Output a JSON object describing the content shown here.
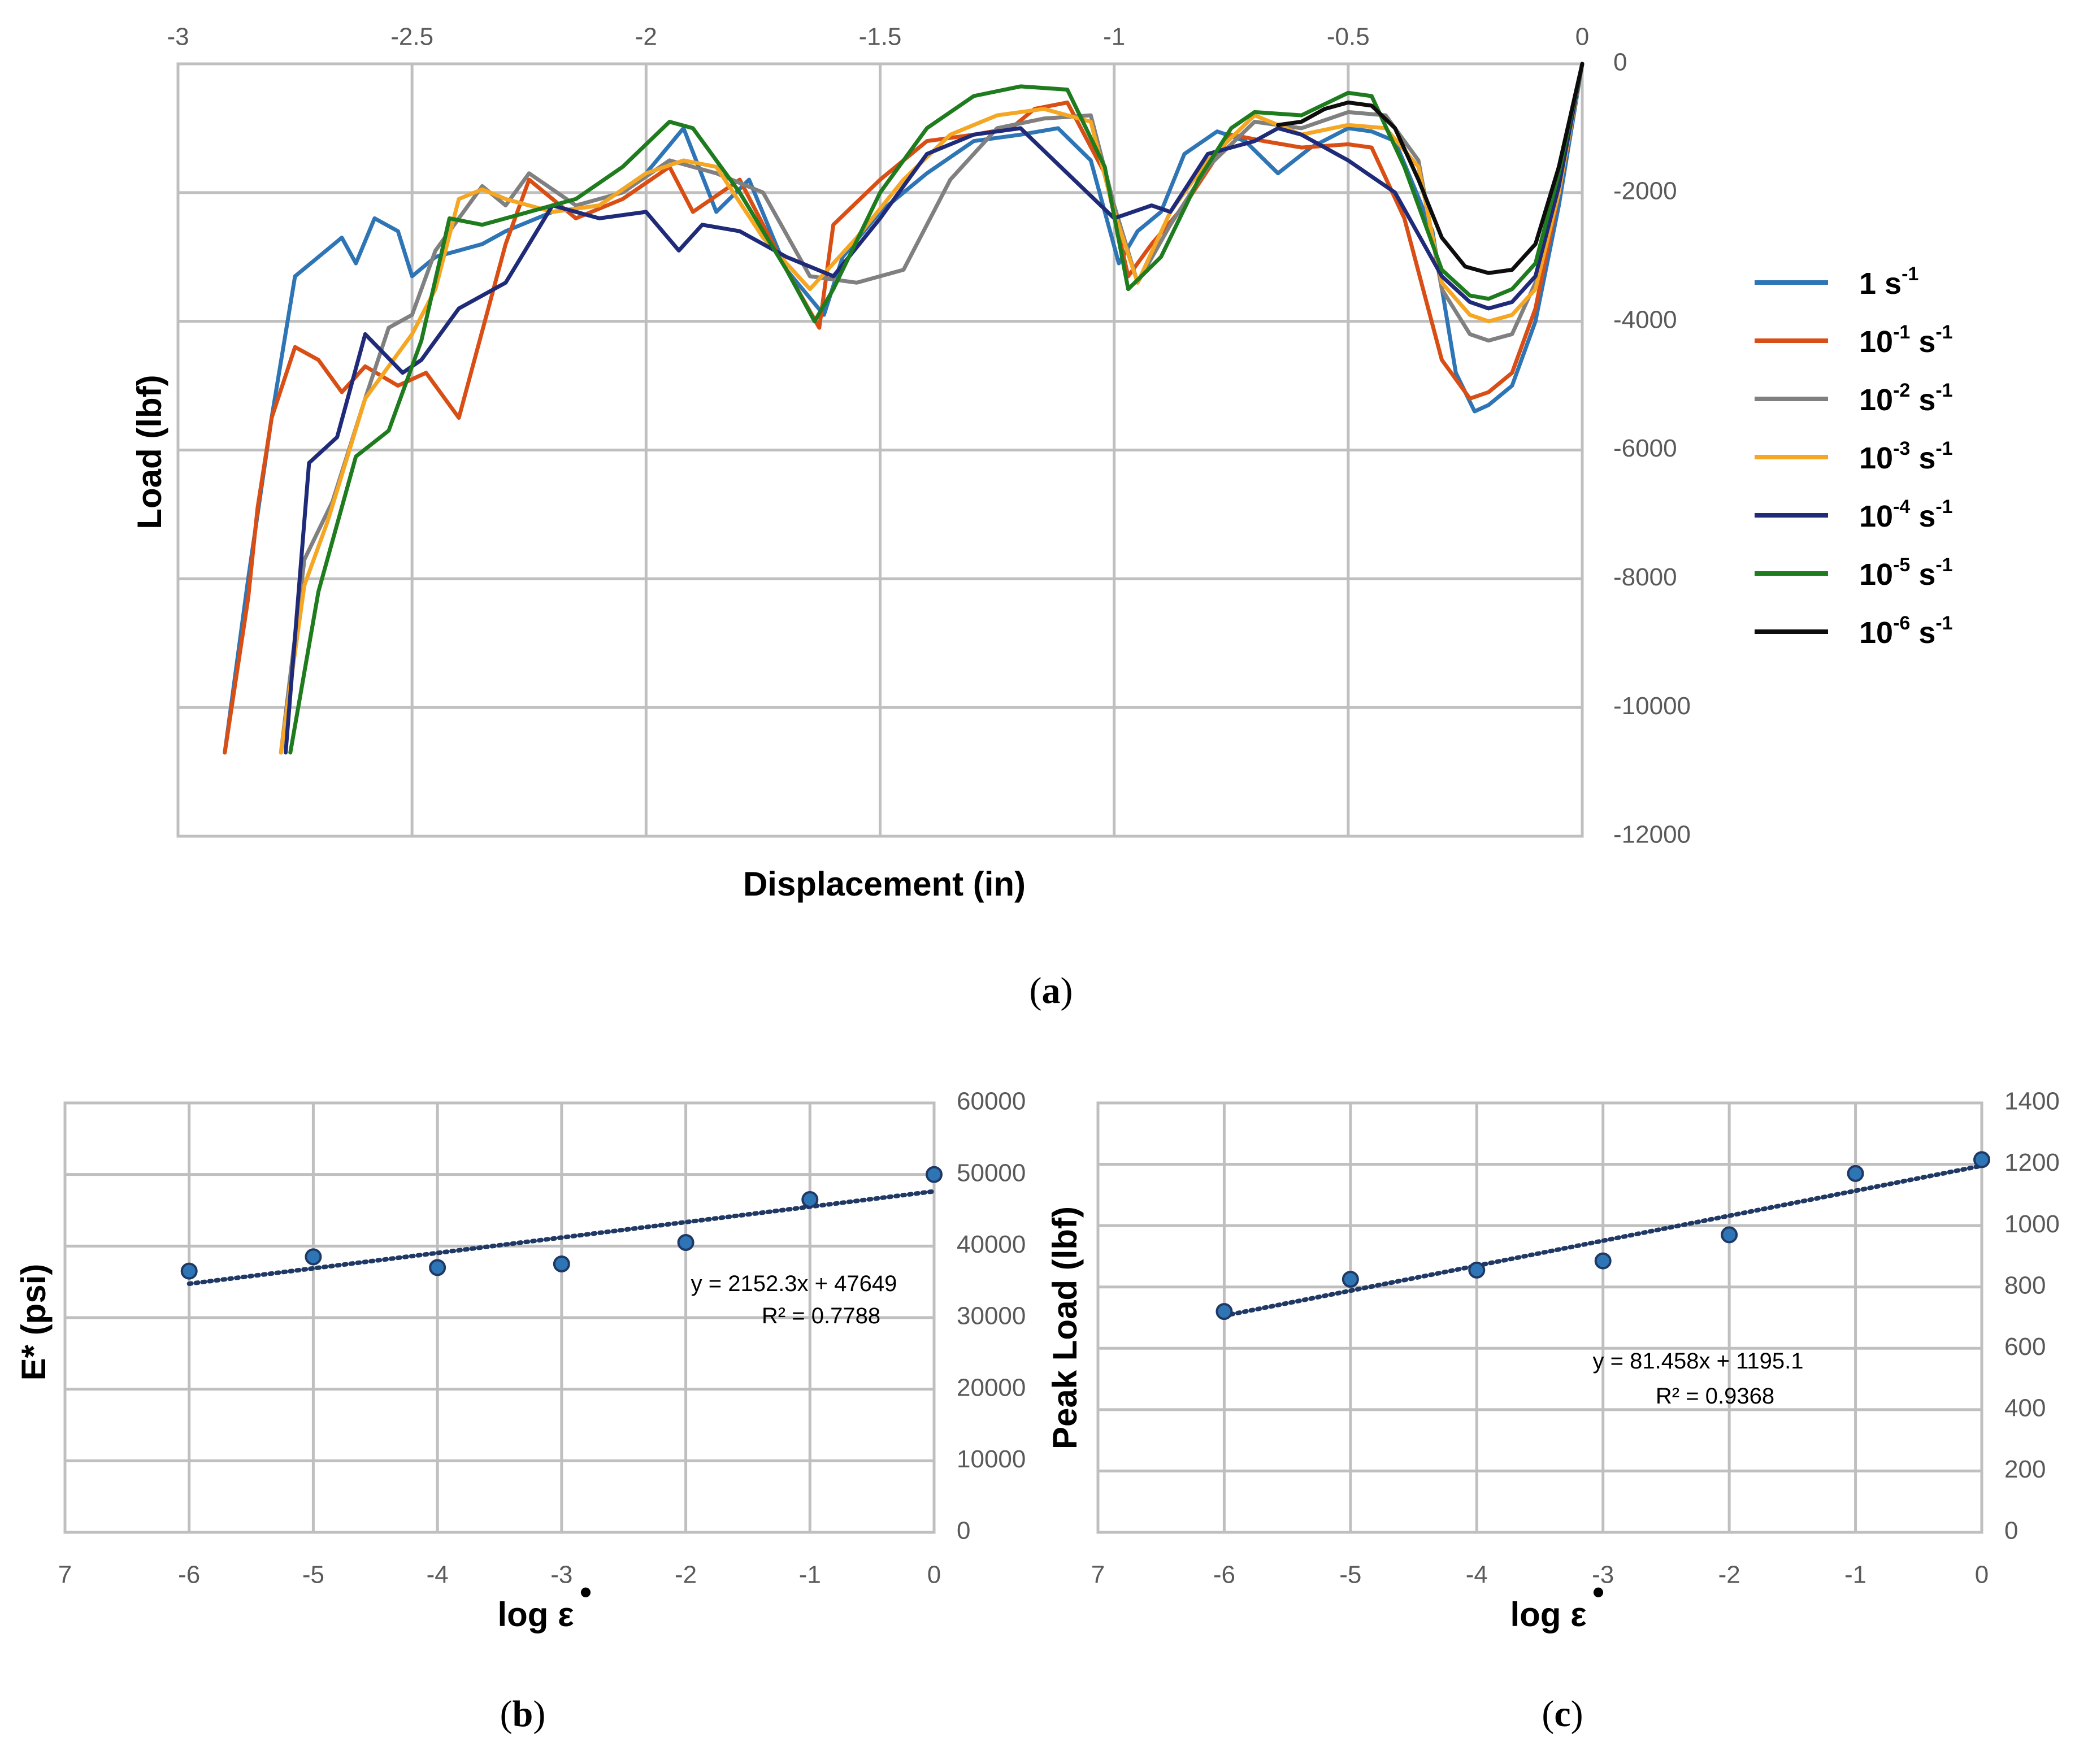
{
  "chart_data": [
    {
      "id": "a",
      "type": "line",
      "panel_label": "a",
      "xlabel": "Displacement (in)",
      "ylabel": "Load (lbf)",
      "xlim": [
        -3,
        0
      ],
      "ylim": [
        -12000,
        0
      ],
      "xticks": [
        "-3",
        "-2.5",
        "-2",
        "-1.5",
        "-1",
        "-0.5",
        "0"
      ],
      "yticks": [
        "0",
        "-2000",
        "-4000",
        "-6000",
        "-8000",
        "-10000",
        "-12000"
      ],
      "grid": true,
      "legend_position": "right",
      "series": [
        {
          "name": "1 s⁻¹",
          "label_base": "1 s",
          "label_exp": "-1",
          "color": "#2E75B6",
          "x": [
            0,
            -0.05,
            -0.1,
            -0.15,
            -0.2,
            -0.23,
            -0.27,
            -0.32,
            -0.4,
            -0.45,
            -0.5,
            -0.58,
            -0.65,
            -0.72,
            -0.78,
            -0.85,
            -0.9,
            -0.95,
            -0.99,
            -1.05,
            -1.12,
            -1.2,
            -1.3,
            -1.4,
            -1.5,
            -1.58,
            -1.62,
            -1.7,
            -1.78,
            -1.85,
            -1.92,
            -2.0,
            -2.1,
            -2.2,
            -2.3,
            -2.35,
            -2.4,
            -2.45,
            -2.5,
            -2.53,
            -2.58,
            -2.62,
            -2.65,
            -2.7,
            -2.75,
            -2.8,
            -2.85,
            -2.9
          ],
          "y": [
            0,
            -2200,
            -4000,
            -5000,
            -5300,
            -5400,
            -4800,
            -2600,
            -1200,
            -1050,
            -1000,
            -1300,
            -1700,
            -1200,
            -1050,
            -1400,
            -2300,
            -2600,
            -3100,
            -1500,
            -1000,
            -1100,
            -1200,
            -1700,
            -2300,
            -3000,
            -3900,
            -3200,
            -1800,
            -2300,
            -1000,
            -1700,
            -2200,
            -2300,
            -2600,
            -2800,
            -2900,
            -3000,
            -3300,
            -2600,
            -2400,
            -3100,
            -2700,
            -3000,
            -3300,
            -5500,
            -8000,
            -10700
          ]
        },
        {
          "name": "10⁻¹ s⁻¹",
          "label_base": "10",
          "label_exp": "-1",
          "color": "#D94E14",
          "x": [
            0,
            -0.05,
            -0.1,
            -0.15,
            -0.2,
            -0.24,
            -0.3,
            -0.38,
            -0.45,
            -0.5,
            -0.6,
            -0.68,
            -0.75,
            -0.85,
            -0.92,
            -0.97,
            -1.02,
            -1.1,
            -1.17,
            -1.22,
            -1.3,
            -1.4,
            -1.5,
            -1.6,
            -1.63,
            -1.7,
            -1.8,
            -1.9,
            -1.95,
            -2.05,
            -2.15,
            -2.25,
            -2.3,
            -2.4,
            -2.47,
            -2.53,
            -2.6,
            -2.65,
            -2.7,
            -2.75,
            -2.8,
            -2.83,
            -2.85,
            -2.9
          ],
          "y": [
            0,
            -2000,
            -3800,
            -4800,
            -5100,
            -5200,
            -4600,
            -2400,
            -1300,
            -1250,
            -1300,
            -1200,
            -1100,
            -2200,
            -2800,
            -3300,
            -1700,
            -600,
            -700,
            -1000,
            -1100,
            -1200,
            -1800,
            -2500,
            -4100,
            -3200,
            -1800,
            -2300,
            -1600,
            -2100,
            -2400,
            -1800,
            -2800,
            -5500,
            -4800,
            -5000,
            -4700,
            -5100,
            -4600,
            -4400,
            -5500,
            -6900,
            -8300,
            -10700
          ]
        },
        {
          "name": "10⁻² s⁻¹",
          "label_base": "10",
          "label_exp": "-2",
          "color": "#808080",
          "x": [
            0,
            -0.05,
            -0.1,
            -0.15,
            -0.2,
            -0.24,
            -0.3,
            -0.35,
            -0.42,
            -0.5,
            -0.6,
            -0.7,
            -0.8,
            -0.88,
            -0.95,
            -1.0,
            -1.05,
            -1.15,
            -1.25,
            -1.35,
            -1.45,
            -1.55,
            -1.65,
            -1.75,
            -1.85,
            -1.95,
            -2.05,
            -2.15,
            -2.25,
            -2.3,
            -2.35,
            -2.45,
            -2.5,
            -2.55,
            -2.6,
            -2.67,
            -2.73,
            -2.78
          ],
          "y": [
            0,
            -1800,
            -3400,
            -4200,
            -4300,
            -4200,
            -3500,
            -1500,
            -800,
            -750,
            -1000,
            -900,
            -1600,
            -2500,
            -3400,
            -2200,
            -800,
            -850,
            -1000,
            -1800,
            -3200,
            -3400,
            -3300,
            -2000,
            -1700,
            -1500,
            -2000,
            -2200,
            -1700,
            -2200,
            -1900,
            -2900,
            -3900,
            -4100,
            -5200,
            -6800,
            -7700,
            -10700
          ]
        },
        {
          "name": "10⁻³ s⁻¹",
          "label_base": "10",
          "label_exp": "-3",
          "color": "#F5A623",
          "x": [
            0,
            -0.05,
            -0.1,
            -0.15,
            -0.2,
            -0.24,
            -0.3,
            -0.35,
            -0.42,
            -0.5,
            -0.6,
            -0.7,
            -0.8,
            -0.88,
            -0.95,
            -1.0,
            -1.05,
            -1.15,
            -1.25,
            -1.35,
            -1.45,
            -1.55,
            -1.65,
            -1.75,
            -1.85,
            -1.92,
            -2.0,
            -2.1,
            -2.2,
            -2.3,
            -2.35,
            -2.4,
            -2.45,
            -2.5,
            -2.6,
            -2.68,
            -2.73,
            -2.78
          ],
          "y": [
            0,
            -2000,
            -3500,
            -3900,
            -4000,
            -3900,
            -3400,
            -1600,
            -1000,
            -950,
            -1100,
            -800,
            -1500,
            -2300,
            -3400,
            -2300,
            -900,
            -700,
            -800,
            -1100,
            -1800,
            -2700,
            -3500,
            -2700,
            -1600,
            -1500,
            -1700,
            -2200,
            -2300,
            -2100,
            -1950,
            -2100,
            -3500,
            -4200,
            -5200,
            -7100,
            -8100,
            -10700
          ]
        },
        {
          "name": "10⁻⁴ s⁻¹",
          "label_base": "10",
          "label_exp": "-4",
          "color": "#1F2A78",
          "x": [
            0,
            -0.05,
            -0.1,
            -0.15,
            -0.2,
            -0.24,
            -0.3,
            -0.4,
            -0.5,
            -0.6,
            -0.65,
            -0.7,
            -0.8,
            -0.88,
            -0.92,
            -1.0,
            -1.1,
            -1.2,
            -1.3,
            -1.4,
            -1.5,
            -1.6,
            -1.7,
            -1.8,
            -1.88,
            -1.93,
            -2.0,
            -2.1,
            -2.2,
            -2.3,
            -2.4,
            -2.48,
            -2.52,
            -2.6,
            -2.66,
            -2.72,
            -2.77
          ],
          "y": [
            0,
            -1900,
            -3300,
            -3700,
            -3800,
            -3700,
            -3300,
            -2000,
            -1500,
            -1100,
            -1000,
            -1200,
            -1400,
            -2300,
            -2200,
            -2400,
            -1700,
            -1000,
            -1100,
            -1400,
            -2400,
            -3300,
            -3000,
            -2600,
            -2500,
            -2900,
            -2300,
            -2400,
            -2200,
            -3400,
            -3800,
            -4600,
            -4800,
            -4200,
            -5800,
            -6200,
            -10700
          ]
        },
        {
          "name": "10⁻⁵ s⁻¹",
          "label_base": "10",
          "label_exp": "-5",
          "color": "#1E7B1E",
          "x": [
            0,
            -0.05,
            -0.1,
            -0.15,
            -0.2,
            -0.24,
            -0.3,
            -0.38,
            -0.45,
            -0.5,
            -0.6,
            -0.7,
            -0.75,
            -0.82,
            -0.9,
            -0.97,
            -1.02,
            -1.1,
            -1.2,
            -1.3,
            -1.4,
            -1.5,
            -1.6,
            -1.64,
            -1.7,
            -1.8,
            -1.9,
            -1.95,
            -2.05,
            -2.15,
            -2.25,
            -2.35,
            -2.42,
            -2.48,
            -2.55,
            -2.62,
            -2.7,
            -2.76
          ],
          "y": [
            0,
            -1700,
            -3100,
            -3500,
            -3650,
            -3600,
            -3200,
            -1600,
            -500,
            -450,
            -800,
            -750,
            -1000,
            -1800,
            -3000,
            -3500,
            -1600,
            -400,
            -350,
            -500,
            -1000,
            -2000,
            -3500,
            -4000,
            -3200,
            -2000,
            -1000,
            -900,
            -1600,
            -2100,
            -2300,
            -2500,
            -2400,
            -4300,
            -5700,
            -6100,
            -8200,
            -10700
          ]
        },
        {
          "name": "10⁻⁶ s⁻¹",
          "label_base": "10",
          "label_exp": "-6",
          "color": "#0D0D0D",
          "x": [
            0,
            -0.05,
            -0.1,
            -0.15,
            -0.2,
            -0.25,
            -0.3,
            -0.35,
            -0.4,
            -0.45,
            -0.5,
            -0.55,
            -0.6,
            -0.65
          ],
          "y": [
            0,
            -1600,
            -2800,
            -3200,
            -3250,
            -3150,
            -2700,
            -1800,
            -1000,
            -650,
            -600,
            -700,
            -900,
            -950
          ]
        }
      ]
    },
    {
      "id": "b",
      "type": "scatter",
      "panel_label": "b",
      "xlabel": "log ε̇",
      "xlabel_base": "log ε",
      "xlabel_dot": "•",
      "ylabel": "E* (psi)",
      "xlim": [
        -7,
        0
      ],
      "ylim": [
        0,
        60000
      ],
      "xticks": [
        "7",
        "-6",
        "-5",
        "-4",
        "-3",
        "-2",
        "-1",
        "0"
      ],
      "yticks": [
        "0",
        "10000",
        "20000",
        "30000",
        "40000",
        "50000",
        "60000"
      ],
      "grid": true,
      "x": [
        -6,
        -5,
        -4,
        -3,
        -2,
        -1,
        0
      ],
      "y": [
        36500,
        38500,
        37000,
        37500,
        40500,
        46500,
        50000
      ],
      "trendline": {
        "slope": 2152.3,
        "intercept": 47649
      },
      "equation": "y = 2152.3x + 47649",
      "r2": "R² = 0.7788"
    },
    {
      "id": "c",
      "type": "scatter",
      "panel_label": "c",
      "xlabel": "log ε̇",
      "xlabel_base": "log ε",
      "xlabel_dot": "•",
      "ylabel": "Peak Load (lbf)",
      "xlim": [
        -7,
        0
      ],
      "ylim": [
        0,
        1400
      ],
      "xticks": [
        "7",
        "-6",
        "-5",
        "-4",
        "-3",
        "-2",
        "-1",
        "0"
      ],
      "yticks": [
        "0",
        "200",
        "400",
        "600",
        "800",
        "1000",
        "1200",
        "1400"
      ],
      "grid": true,
      "x": [
        -6,
        -5,
        -4,
        -3,
        -2,
        -1,
        0
      ],
      "y": [
        720,
        825,
        855,
        885,
        970,
        1170,
        1215
      ],
      "trendline": {
        "slope": 81.458,
        "intercept": 1195.1
      },
      "equation": "y = 81.458x + 1195.1",
      "r2": "R² = 0.9368"
    }
  ],
  "styles": {
    "marker_fill": "#2E75B6",
    "marker_stroke": "#1F3864",
    "trend_color": "#1F3864",
    "grid_color": "#BFBFBF"
  }
}
